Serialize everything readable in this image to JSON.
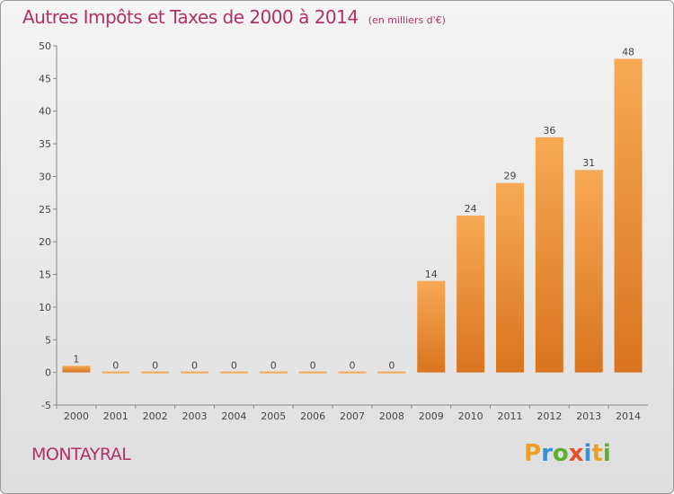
{
  "chart_data": {
    "type": "bar",
    "title": "Autres Impôts et Taxes de 2000 à 2014",
    "unit": "(en milliers d'€)",
    "xlabel": "",
    "ylabel": "",
    "categories": [
      "2000",
      "2001",
      "2002",
      "2003",
      "2004",
      "2005",
      "2006",
      "2007",
      "2008",
      "2009",
      "2010",
      "2011",
      "2012",
      "2013",
      "2014"
    ],
    "values": [
      1,
      0,
      0,
      0,
      0,
      0,
      0,
      0,
      0,
      14,
      24,
      29,
      36,
      31,
      48
    ],
    "data_labels": [
      "1",
      "0",
      "0",
      "0",
      "0",
      "0",
      "0",
      "0",
      "0",
      "14",
      "24",
      "29",
      "36",
      "31",
      "48"
    ],
    "ylim": [
      -5,
      50
    ],
    "yticks": [
      -5,
      0,
      5,
      10,
      15,
      20,
      25,
      30,
      35,
      40,
      45,
      50
    ],
    "grid": false,
    "colors": {
      "bar_light": "#f7a955",
      "bar_dark": "#d9741f",
      "title": "#b0306a"
    }
  },
  "footer": {
    "town": "MONTAYRAL",
    "brand_letters": [
      "P",
      "r",
      "o",
      "x",
      "i",
      "t",
      "i"
    ],
    "brand_colors": [
      "#f0a020",
      "#3b8fd6",
      "#5fae2e",
      "#e2502d",
      "#3b8fd6",
      "#f0a020",
      "#5fae2e"
    ]
  }
}
